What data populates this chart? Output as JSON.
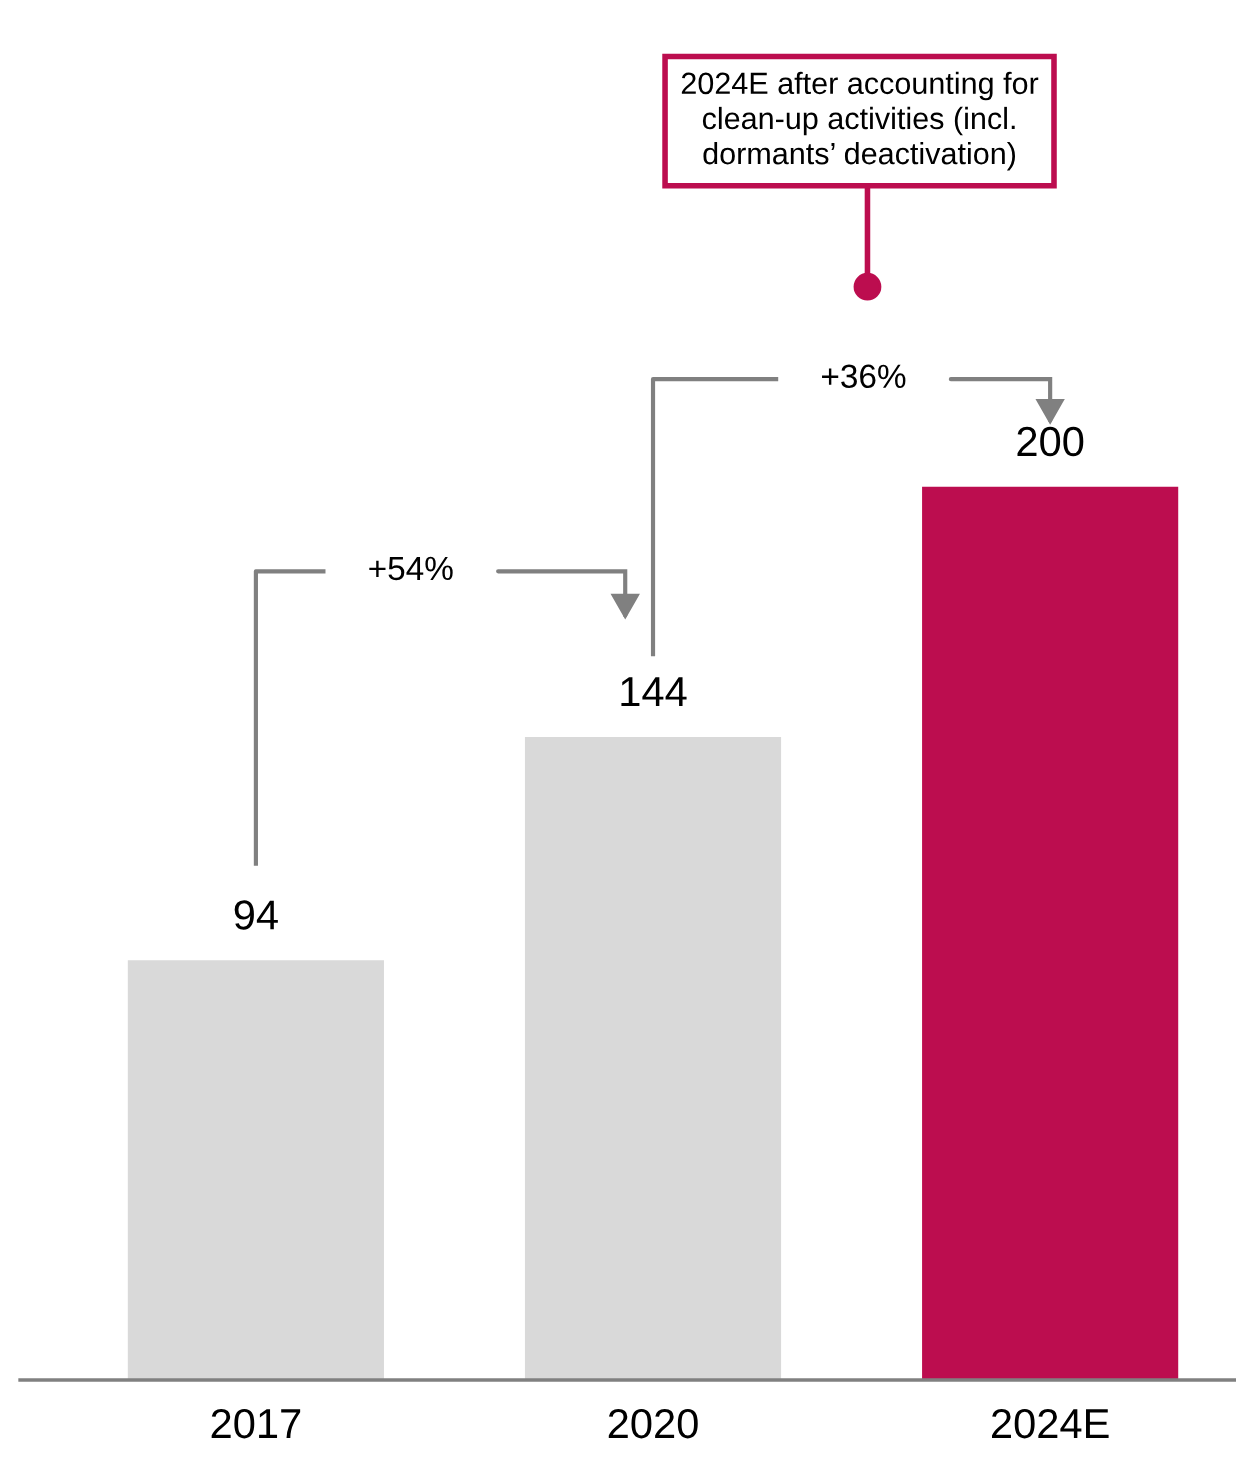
{
  "chart_data": {
    "type": "bar",
    "categories": [
      "2017",
      "2020",
      "2024E"
    ],
    "values": [
      94,
      144,
      200
    ],
    "colors": [
      "#d9d9d9",
      "#d9d9d9",
      "#bc0d4f"
    ],
    "data_labels": true,
    "tick_labels": "x",
    "grid": false,
    "annotations": [
      "+54%",
      "+36%",
      "2024E after accounting for clean-up activities (incl. dormants’ deactivation)"
    ]
  }
}
